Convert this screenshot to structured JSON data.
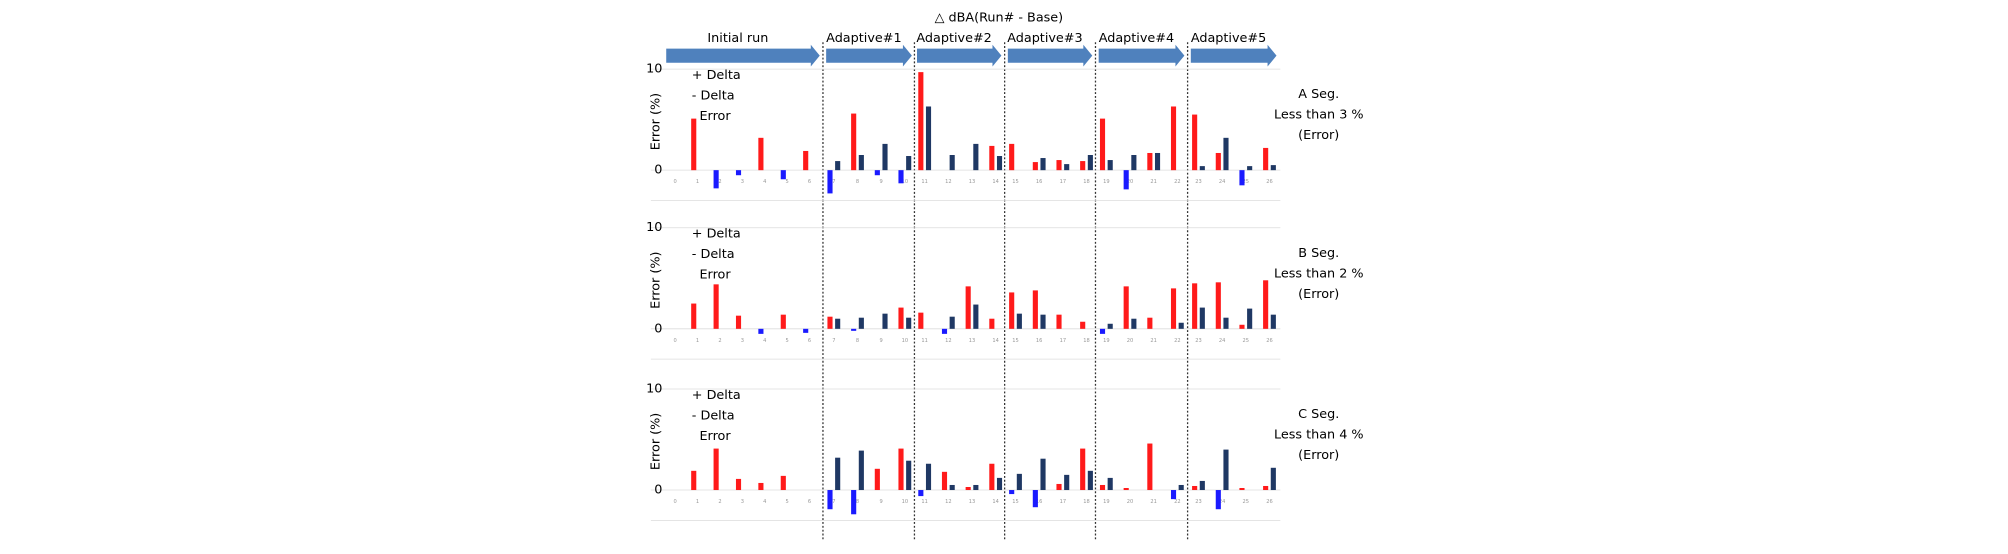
{
  "title": "△ dBA(Run# - Base)",
  "stages": [
    "Initial run",
    "Adaptive#1",
    "Adaptive#2",
    "Adaptive#3",
    "Adaptive#4",
    "Adaptive#5"
  ],
  "chart_data": [
    {
      "type": "bar",
      "y_label": "Error (%)",
      "annotation": [
        "A Seg.",
        "Less than 3 %",
        "(Error)"
      ],
      "categories": [
        "0",
        "1",
        "2",
        "3",
        "4",
        "5",
        "6",
        "7",
        "8",
        "9",
        "10",
        "11",
        "12",
        "13",
        "14",
        "15",
        "16",
        "17",
        "18",
        "19",
        "20",
        "21",
        "22",
        "23",
        "24",
        "25",
        "26"
      ],
      "ylim": [
        -3,
        10
      ],
      "yticks": [
        0,
        10
      ],
      "grid": true,
      "series": [
        {
          "name": "+ Delta",
          "color": "#ff1a1a",
          "values": [
            null,
            5.1,
            null,
            null,
            3.2,
            null,
            1.9,
            null,
            5.6,
            null,
            null,
            9.7,
            null,
            null,
            2.4,
            2.6,
            0.8,
            1.0,
            0.9,
            5.1,
            null,
            1.7,
            6.3,
            5.5,
            1.7,
            null,
            2.2
          ]
        },
        {
          "name": "- Delta",
          "color": "#1a1aff",
          "values": [
            null,
            null,
            -1.8,
            -0.5,
            null,
            -0.9,
            null,
            -2.3,
            null,
            -0.5,
            -1.3,
            null,
            null,
            null,
            null,
            null,
            null,
            null,
            null,
            null,
            -1.9,
            null,
            null,
            null,
            null,
            -1.5,
            null
          ]
        },
        {
          "name": "Error",
          "color": "#1f3864",
          "values": [
            null,
            null,
            null,
            null,
            null,
            null,
            null,
            0.9,
            1.5,
            2.6,
            1.4,
            6.3,
            1.5,
            2.6,
            1.4,
            null,
            1.2,
            0.6,
            1.5,
            1.0,
            1.5,
            1.7,
            null,
            0.4,
            3.2,
            0.4,
            0.5
          ]
        }
      ]
    },
    {
      "type": "bar",
      "y_label": "Error (%)",
      "annotation": [
        "B Seg.",
        "Less than 2 %",
        "(Error)"
      ],
      "categories": [
        "0",
        "1",
        "2",
        "3",
        "4",
        "5",
        "6",
        "7",
        "8",
        "9",
        "10",
        "11",
        "12",
        "13",
        "14",
        "15",
        "16",
        "17",
        "18",
        "19",
        "20",
        "21",
        "22",
        "23",
        "24",
        "25",
        "26"
      ],
      "ylim": [
        -3,
        10
      ],
      "yticks": [
        0,
        10
      ],
      "grid": true,
      "series": [
        {
          "name": "+ Delta",
          "color": "#ff1a1a",
          "values": [
            null,
            2.5,
            4.4,
            1.3,
            null,
            1.4,
            null,
            1.2,
            null,
            null,
            2.1,
            1.6,
            null,
            4.2,
            1.0,
            3.6,
            3.8,
            1.4,
            0.7,
            null,
            4.2,
            1.1,
            4.0,
            4.5,
            4.6,
            0.4,
            4.8
          ]
        },
        {
          "name": "- Delta",
          "color": "#1a1aff",
          "values": [
            null,
            null,
            null,
            null,
            -0.5,
            null,
            -0.4,
            null,
            -0.2,
            null,
            null,
            null,
            -0.5,
            null,
            null,
            null,
            null,
            null,
            null,
            -0.5,
            null,
            null,
            null,
            null,
            null,
            null,
            null
          ]
        },
        {
          "name": "Error",
          "color": "#1f3864",
          "values": [
            null,
            null,
            null,
            null,
            null,
            null,
            null,
            1.0,
            1.1,
            1.5,
            1.1,
            null,
            1.2,
            2.4,
            null,
            1.5,
            1.4,
            null,
            null,
            0.5,
            1.0,
            null,
            0.6,
            2.1,
            1.1,
            2.0,
            1.4
          ]
        }
      ]
    },
    {
      "type": "bar",
      "y_label": "Error (%)",
      "annotation": [
        "C Seg.",
        "Less than 4 %",
        "(Error)"
      ],
      "categories": [
        "0",
        "1",
        "2",
        "3",
        "4",
        "5",
        "6",
        "7",
        "8",
        "9",
        "10",
        "11",
        "12",
        "13",
        "14",
        "15",
        "16",
        "17",
        "18",
        "19",
        "20",
        "21",
        "22",
        "23",
        "24",
        "25",
        "26"
      ],
      "ylim": [
        -3,
        10
      ],
      "yticks": [
        0,
        10
      ],
      "grid": true,
      "series": [
        {
          "name": "+ Delta",
          "color": "#ff1a1a",
          "values": [
            null,
            1.9,
            4.1,
            1.1,
            0.7,
            1.4,
            null,
            null,
            null,
            2.1,
            4.1,
            null,
            1.8,
            0.3,
            2.6,
            null,
            null,
            0.6,
            4.1,
            0.5,
            0.2,
            4.6,
            null,
            0.4,
            null,
            0.2,
            0.4
          ]
        },
        {
          "name": "- Delta",
          "color": "#1a1aff",
          "values": [
            null,
            null,
            null,
            null,
            null,
            null,
            null,
            -1.9,
            -2.4,
            null,
            null,
            -0.6,
            null,
            null,
            null,
            -0.4,
            -1.7,
            null,
            null,
            null,
            null,
            null,
            -0.9,
            null,
            -1.9,
            null,
            null
          ]
        },
        {
          "name": "Error",
          "color": "#1f3864",
          "values": [
            null,
            null,
            null,
            null,
            null,
            null,
            null,
            3.2,
            3.9,
            null,
            2.9,
            2.6,
            0.5,
            0.5,
            1.2,
            1.6,
            3.1,
            1.5,
            1.9,
            1.2,
            null,
            null,
            0.5,
            0.9,
            4.0,
            null,
            2.2
          ]
        }
      ]
    }
  ]
}
